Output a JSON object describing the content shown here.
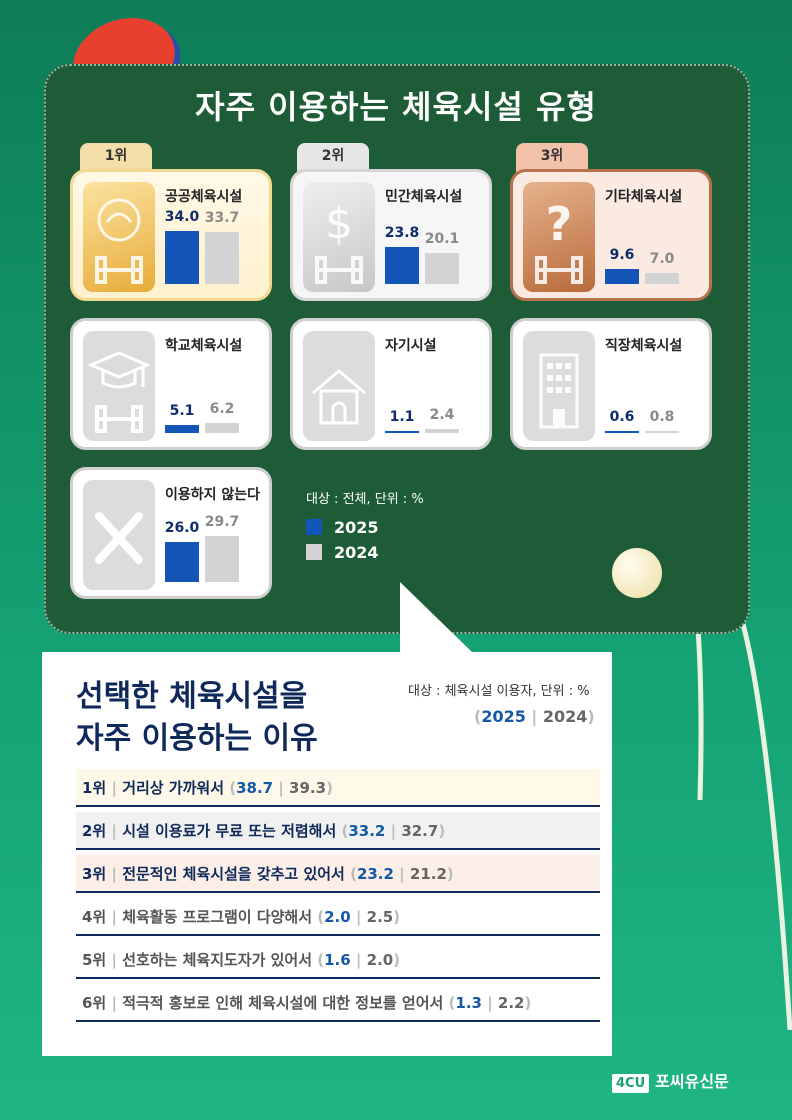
{
  "main_title": "자주 이용하는 체육시설 유형",
  "facilities_note": "대상 : 전체, 단위 : %",
  "legend": {
    "y2025": "2025",
    "y2024": "2024",
    "color2025": "#1455b8",
    "color2024": "#d3d3d3"
  },
  "facilities": [
    {
      "rank": "1위",
      "label": "공공체육시설",
      "v2025": "34.0",
      "v2024": "33.7",
      "icon": "dumbbell-swirl-icon"
    },
    {
      "rank": "2위",
      "label": "민간체육시설",
      "v2025": "23.8",
      "v2024": "20.1",
      "icon": "dollar-dumbbell-icon"
    },
    {
      "rank": "3위",
      "label": "기타체육시설",
      "v2025": "9.6",
      "v2024": "7.0",
      "icon": "question-dumbbell-icon"
    },
    {
      "rank": "",
      "label": "학교체육시설",
      "v2025": "5.1",
      "v2024": "6.2",
      "icon": "graduation-cap-icon"
    },
    {
      "rank": "",
      "label": "자기시설",
      "v2025": "1.1",
      "v2024": "2.4",
      "icon": "house-icon"
    },
    {
      "rank": "",
      "label": "직장체육시설",
      "v2025": "0.6",
      "v2024": "0.8",
      "icon": "office-building-icon"
    },
    {
      "rank": "",
      "label": "이용하지 않는다",
      "v2025": "26.0",
      "v2024": "29.7",
      "icon": "x-mark-icon"
    }
  ],
  "reasons_title_line1": "선택한 체육시설을",
  "reasons_title_line2": "자주 이용하는 이유",
  "reasons_note": "대상 : 체육시설 이용자, 단위 : %",
  "reasons_legend": {
    "y2025": "2025",
    "y2024": "2024"
  },
  "reasons": [
    {
      "rank": "1위",
      "text": "거리상 가까워서",
      "v2025": "38.7",
      "v2024": "39.3",
      "bg": "#fdf8e8"
    },
    {
      "rank": "2위",
      "text": "시설 이용료가 무료 또는 저렴해서",
      "v2025": "33.2",
      "v2024": "32.7",
      "bg": "#f1f1f1"
    },
    {
      "rank": "3위",
      "text": "전문적인 체육시설을 갖추고 있어서",
      "v2025": "23.2",
      "v2024": "21.2",
      "bg": "#fcefe8"
    },
    {
      "rank": "4위",
      "text": "체육활동 프로그램이 다양해서",
      "v2025": "2.0",
      "v2024": "2.5",
      "bg": "#ffffff"
    },
    {
      "rank": "5위",
      "text": "선호하는 체육지도자가 있어서",
      "v2025": "1.6",
      "v2024": "2.0",
      "bg": "#ffffff"
    },
    {
      "rank": "6위",
      "text": "적극적 홍보로 인해 체육시설에 대한 정보를 얻어서",
      "v2025": "1.3",
      "v2024": "2.2",
      "bg": "#ffffff"
    }
  ],
  "brand": {
    "logo": "4CU",
    "name": "포씨유신문"
  },
  "chart_data": [
    {
      "type": "bar",
      "title": "자주 이용하는 체육시설 유형",
      "note": "대상 : 전체, 단위 : %",
      "categories": [
        "공공체육시설",
        "민간체육시설",
        "기타체육시설",
        "학교체육시설",
        "자기시설",
        "직장체육시설",
        "이용하지 않는다"
      ],
      "series": [
        {
          "name": "2025",
          "values": [
            34.0,
            23.8,
            9.6,
            5.1,
            1.1,
            0.6,
            26.0
          ]
        },
        {
          "name": "2024",
          "values": [
            33.7,
            20.1,
            7.0,
            6.2,
            2.4,
            0.8,
            29.7
          ]
        }
      ],
      "ylim": [
        0,
        40
      ]
    },
    {
      "type": "table",
      "title": "선택한 체육시설을 자주 이용하는 이유",
      "note": "대상 : 체육시설 이용자, 단위 : %",
      "categories": [
        "거리상 가까워서",
        "시설 이용료가 무료 또는 저렴해서",
        "전문적인 체육시설을 갖추고 있어서",
        "체육활동 프로그램이 다양해서",
        "선호하는 체육지도자가 있어서",
        "적극적 홍보로 인해 체육시설에 대한 정보를 얻어서"
      ],
      "series": [
        {
          "name": "2025",
          "values": [
            38.7,
            33.2,
            23.2,
            2.0,
            1.6,
            1.3
          ]
        },
        {
          "name": "2024",
          "values": [
            39.3,
            32.7,
            21.2,
            2.5,
            2.0,
            2.2
          ]
        }
      ]
    }
  ]
}
